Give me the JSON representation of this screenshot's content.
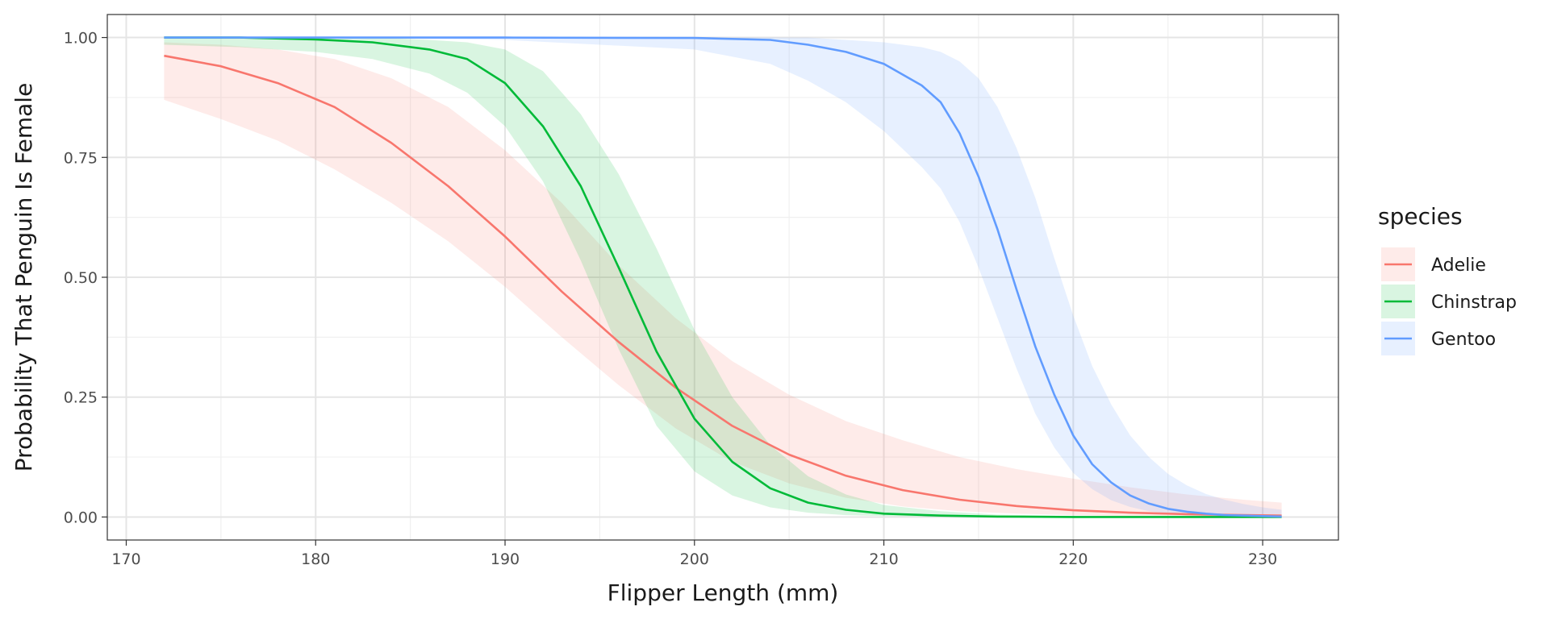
{
  "chart_data": {
    "type": "line",
    "title": "",
    "xlabel": "Flipper Length (mm)",
    "ylabel": "Probability That Penguin Is Female",
    "xlim": [
      169,
      234
    ],
    "ylim": [
      -0.048,
      1.048
    ],
    "x_ticks": [
      170,
      180,
      190,
      200,
      210,
      220,
      230
    ],
    "y_ticks": [
      0,
      0.25,
      0.5,
      0.75,
      1
    ],
    "y_tick_labels": [
      "0.00",
      "0.25",
      "0.50",
      "0.75",
      "1.00"
    ],
    "grid": true,
    "legend": {
      "title": "species",
      "position": "right"
    },
    "series": [
      {
        "name": "Adelie",
        "color": "#F8766D",
        "x": [
          172,
          175,
          178,
          181,
          184,
          187,
          190,
          193,
          196,
          199,
          202,
          205,
          208,
          211,
          214,
          217,
          220,
          223,
          226,
          229,
          231
        ],
        "y": [
          0.962,
          0.94,
          0.905,
          0.855,
          0.78,
          0.69,
          0.585,
          0.47,
          0.365,
          0.27,
          0.19,
          0.13,
          0.086,
          0.056,
          0.036,
          0.023,
          0.014,
          0.009,
          0.006,
          0.004,
          0.003
        ],
        "lower": [
          0.87,
          0.83,
          0.785,
          0.725,
          0.655,
          0.575,
          0.48,
          0.375,
          0.275,
          0.185,
          0.115,
          0.07,
          0.04,
          0.022,
          0.012,
          0.007,
          0.004,
          0.002,
          0.001,
          0.001,
          0.0
        ],
        "upper": [
          0.99,
          0.985,
          0.975,
          0.955,
          0.915,
          0.855,
          0.765,
          0.655,
          0.525,
          0.415,
          0.325,
          0.255,
          0.2,
          0.16,
          0.125,
          0.1,
          0.08,
          0.062,
          0.047,
          0.036,
          0.03
        ]
      },
      {
        "name": "Chinstrap",
        "color": "#00BA38",
        "x": [
          172,
          176,
          180,
          183,
          186,
          188,
          190,
          192,
          194,
          196,
          198,
          200,
          202,
          204,
          206,
          208,
          210,
          213,
          216,
          220,
          224,
          228,
          231
        ],
        "y": [
          1.0,
          1.0,
          0.996,
          0.99,
          0.975,
          0.955,
          0.905,
          0.815,
          0.69,
          0.52,
          0.345,
          0.205,
          0.115,
          0.06,
          0.03,
          0.015,
          0.007,
          0.003,
          0.001,
          0.0,
          0.0,
          0.0,
          0.0
        ],
        "lower": [
          0.985,
          0.98,
          0.97,
          0.955,
          0.925,
          0.885,
          0.815,
          0.7,
          0.535,
          0.35,
          0.19,
          0.095,
          0.045,
          0.02,
          0.009,
          0.004,
          0.002,
          0.0,
          0.0,
          0.0,
          0.0,
          0.0,
          0.0
        ],
        "upper": [
          1.0,
          1.0,
          1.0,
          1.0,
          0.995,
          0.99,
          0.975,
          0.93,
          0.84,
          0.715,
          0.56,
          0.39,
          0.25,
          0.15,
          0.085,
          0.047,
          0.025,
          0.012,
          0.005,
          0.002,
          0.0,
          0.0,
          0.0
        ]
      },
      {
        "name": "Gentoo",
        "color": "#619CFF",
        "x": [
          172,
          180,
          190,
          200,
          204,
          206,
          208,
          210,
          212,
          213,
          214,
          215,
          216,
          217,
          218,
          219,
          220,
          221,
          222,
          223,
          224,
          225,
          226,
          227,
          228,
          229,
          230,
          231
        ],
        "y": [
          1.0,
          1.0,
          1.0,
          0.999,
          0.995,
          0.985,
          0.97,
          0.945,
          0.9,
          0.865,
          0.8,
          0.71,
          0.6,
          0.475,
          0.355,
          0.255,
          0.17,
          0.11,
          0.072,
          0.045,
          0.028,
          0.017,
          0.011,
          0.007,
          0.004,
          0.003,
          0.002,
          0.001
        ],
        "lower": [
          1.0,
          1.0,
          0.995,
          0.975,
          0.945,
          0.91,
          0.865,
          0.805,
          0.73,
          0.685,
          0.615,
          0.52,
          0.415,
          0.31,
          0.215,
          0.145,
          0.092,
          0.058,
          0.035,
          0.021,
          0.012,
          0.007,
          0.004,
          0.002,
          0.001,
          0.0,
          0.0,
          0.0
        ],
        "upper": [
          1.0,
          1.0,
          1.0,
          1.0,
          1.0,
          1.0,
          0.995,
          0.99,
          0.98,
          0.97,
          0.95,
          0.915,
          0.855,
          0.77,
          0.665,
          0.54,
          0.42,
          0.315,
          0.235,
          0.17,
          0.125,
          0.09,
          0.066,
          0.048,
          0.036,
          0.027,
          0.02,
          0.015
        ]
      }
    ]
  }
}
